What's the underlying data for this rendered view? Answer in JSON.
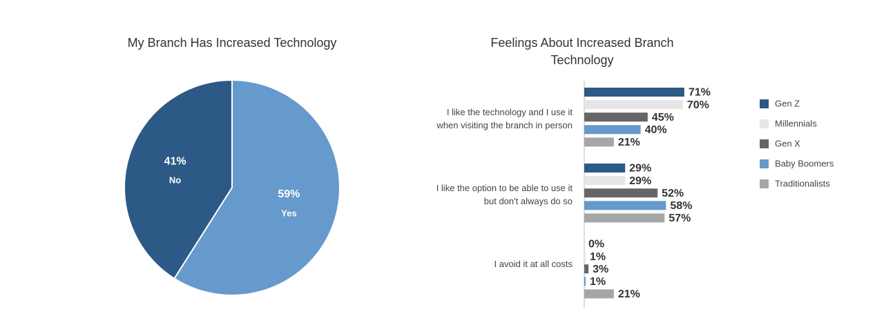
{
  "chart_data": [
    {
      "type": "pie",
      "title": "My Branch Has Increased Technology",
      "categories": [
        "No",
        "Yes"
      ],
      "values": [
        41,
        59
      ],
      "value_labels": [
        "41%",
        "59%"
      ],
      "colors": [
        "#2c5985",
        "#6699cc"
      ]
    },
    {
      "type": "hbar",
      "title": "Feelings About Increased Branch Technology",
      "categories": [
        "I like the technology and I use it when visiting the branch in person",
        "I like the option to be able to use it but don't always do so",
        "I avoid it at all costs"
      ],
      "series": [
        {
          "name": "Gen Z",
          "color": "#2c5985",
          "values": [
            71,
            29,
            0
          ],
          "value_labels": [
            "71%",
            "29%",
            "0%"
          ]
        },
        {
          "name": "Millennials",
          "color": "#e6e6e6",
          "values": [
            70,
            29,
            1
          ],
          "value_labels": [
            "70%",
            "29%",
            "1%"
          ]
        },
        {
          "name": "Gen X",
          "color": "#666666",
          "values": [
            45,
            52,
            3
          ],
          "value_labels": [
            "45%",
            "52%",
            "3%"
          ]
        },
        {
          "name": "Baby Boomers",
          "color": "#6699cc",
          "values": [
            40,
            58,
            1
          ],
          "value_labels": [
            "40%",
            "58%",
            "1%"
          ]
        },
        {
          "name": "Traditionalists",
          "color": "#a6a6a6",
          "values": [
            21,
            57,
            21
          ],
          "value_labels": [
            "21%",
            "57%",
            "21%"
          ]
        }
      ],
      "legend": "right"
    }
  ]
}
